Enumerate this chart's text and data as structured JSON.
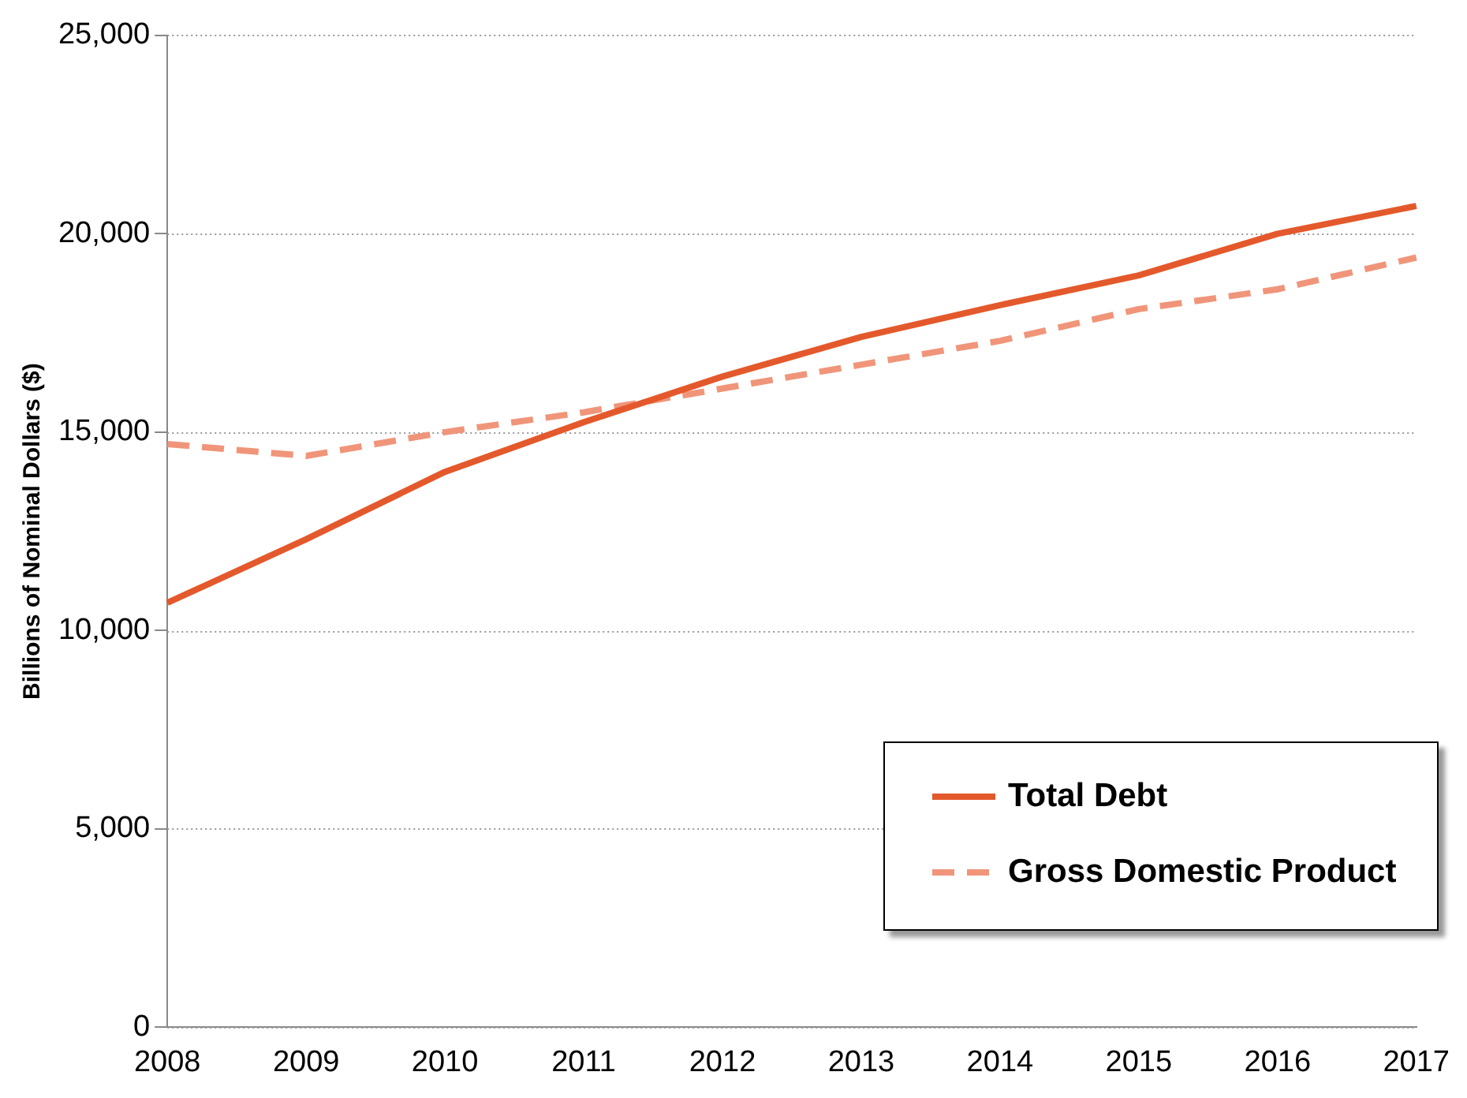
{
  "chart_data": {
    "type": "line",
    "ylabel": "Billions of Nominal Dollars ($)",
    "categories": [
      "2008",
      "2009",
      "2010",
      "2011",
      "2012",
      "2013",
      "2014",
      "2015",
      "2016",
      "2017"
    ],
    "series": [
      {
        "name": "Total Debt",
        "color": "#e4592c",
        "line_style": "solid",
        "values": [
          10700,
          12300,
          14000,
          15250,
          16400,
          17400,
          18200,
          18950,
          20000,
          20700
        ]
      },
      {
        "name": "Gross Domestic Product",
        "color": "#f0957a",
        "line_style": "dashed",
        "values": [
          14700,
          14400,
          15000,
          15500,
          16100,
          16700,
          17300,
          18100,
          18600,
          19400
        ]
      }
    ],
    "ylim": [
      0,
      25000
    ],
    "yticks": [
      0,
      {
        "value": 5000,
        "label": "5,000"
      },
      {
        "value": 10000,
        "label": "10,000"
      },
      {
        "value": 15000,
        "label": "15,000"
      },
      {
        "value": 20000,
        "label": "20,000"
      },
      {
        "value": 25000,
        "label": "25,000"
      }
    ],
    "grid": "y",
    "legend": "bottom right",
    "marker": "none"
  }
}
